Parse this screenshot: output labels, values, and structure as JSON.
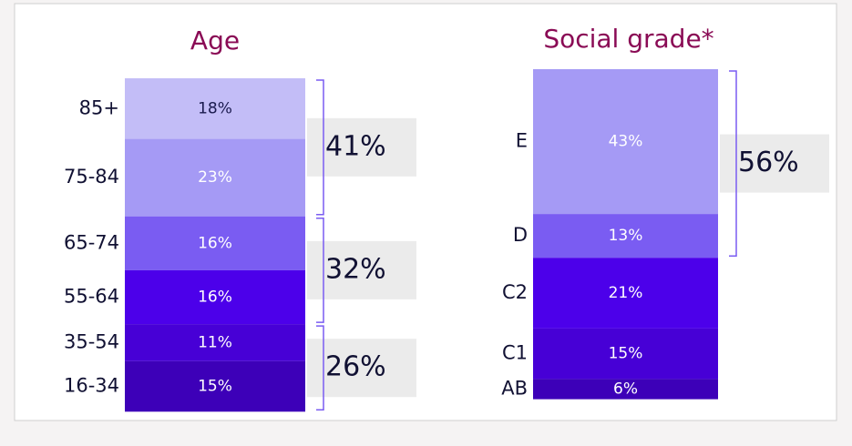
{
  "chart_data": [
    {
      "type": "stacked-column",
      "title": "Age",
      "categories": [
        "85+",
        "75-84",
        "65-74",
        "55-64",
        "35-54",
        "16-34"
      ],
      "values": [
        18,
        23,
        16,
        16,
        11,
        15
      ],
      "value_labels": [
        "18%",
        "23%",
        "16%",
        "16%",
        "11%",
        "15%"
      ],
      "colors": [
        "#c3bdf7",
        "#a59af5",
        "#7a5cf2",
        "#4c00ea",
        "#4700d6",
        "#3d00b8"
      ],
      "groups": [
        {
          "value": 41,
          "label": "41%"
        },
        {
          "value": 32,
          "label": "32%"
        },
        {
          "value": 26,
          "label": "26%"
        }
      ]
    },
    {
      "type": "stacked-column",
      "title": "Social grade*",
      "categories": [
        "E",
        "D",
        "C2",
        "C1",
        "AB"
      ],
      "values": [
        43,
        13,
        21,
        15,
        6
      ],
      "value_labels": [
        "43%",
        "13%",
        "21%",
        "15%",
        "6%"
      ],
      "colors": [
        "#a59af5",
        "#7a5cf2",
        "#4c00ea",
        "#4700d6",
        "#3d00b8"
      ],
      "groups": [
        {
          "value": 56,
          "label": "56%"
        }
      ]
    }
  ]
}
